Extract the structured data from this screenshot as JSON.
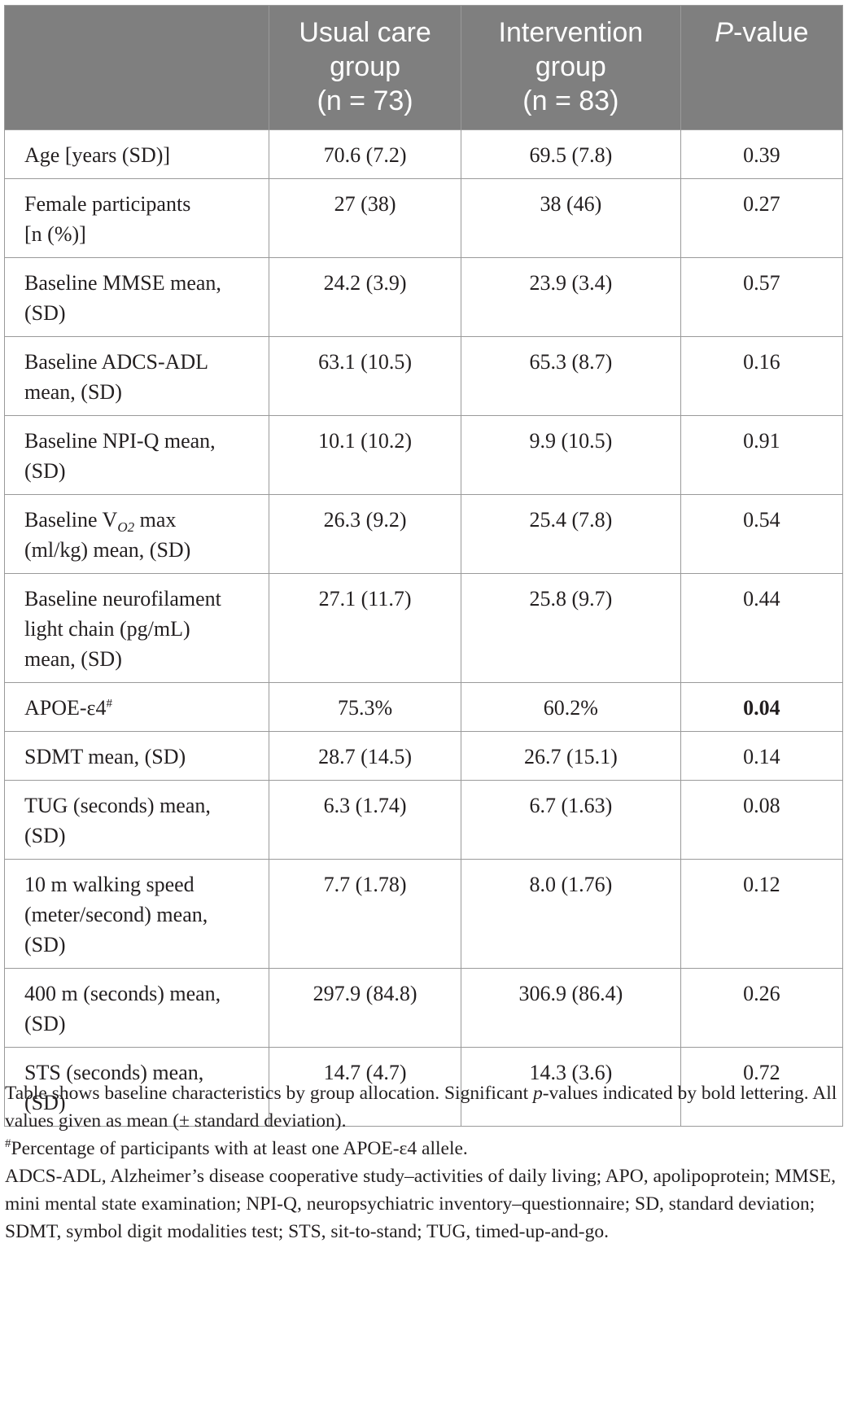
{
  "table": {
    "header": {
      "blank": "",
      "col1": [
        "Usual care",
        "group",
        "(n = 73)"
      ],
      "col2": [
        "Intervention",
        "group",
        "(n = 83)"
      ],
      "col3_italic": "P",
      "col3_rest": "-value"
    },
    "rows": [
      {
        "label": [
          "Age [years (SD)]"
        ],
        "usual": "70.6 (7.2)",
        "intervention": "69.5 (7.8)",
        "p": "0.39"
      },
      {
        "label": [
          "Female participants",
          "[n (%)]"
        ],
        "usual": "27 (38)",
        "intervention": "38 (46)",
        "p": "0.27"
      },
      {
        "label": [
          "Baseline MMSE mean,",
          "(SD)"
        ],
        "usual": "24.2 (3.9)",
        "intervention": "23.9 (3.4)",
        "p": "0.57"
      },
      {
        "label": [
          "Baseline ADCS-ADL",
          "mean, (SD)"
        ],
        "usual": "63.1 (10.5)",
        "intervention": "65.3 (8.7)",
        "p": "0.16"
      },
      {
        "label": [
          "Baseline NPI-Q mean,",
          "(SD)"
        ],
        "usual": "10.1 (10.2)",
        "intervention": "9.9 (10.5)",
        "p": "0.91"
      },
      {
        "label_pre": "Baseline V",
        "label_sub": "O2",
        "label_post": " max",
        "label_line2": "(ml/kg) mean, (SD)",
        "usual": "26.3 (9.2)",
        "intervention": "25.4 (7.8)",
        "p": "0.54"
      },
      {
        "label": [
          "Baseline neurofilament",
          "light chain (pg/mL)",
          "mean, (SD)"
        ],
        "usual": "27.1 (11.7)",
        "intervention": "25.8 (9.7)",
        "p": "0.44"
      },
      {
        "label_pre": "APOE-ε4",
        "label_sup": "#",
        "usual": "75.3%",
        "intervention": "60.2%",
        "p": "0.04"
      },
      {
        "label": [
          "SDMT mean, (SD)"
        ],
        "usual": "28.7 (14.5)",
        "intervention": "26.7 (15.1)",
        "p": "0.14"
      },
      {
        "label": [
          "TUG (seconds) mean,",
          "(SD)"
        ],
        "usual": "6.3 (1.74)",
        "intervention": "6.7 (1.63)",
        "p": "0.08"
      },
      {
        "label": [
          "10 m walking speed",
          "(meter/second) mean,",
          "(SD)"
        ],
        "usual": "7.7 (1.78)",
        "intervention": "8.0 (1.76)",
        "p": "0.12"
      },
      {
        "label": [
          "400 m (seconds) mean,",
          "(SD)"
        ],
        "usual": "297.9 (84.8)",
        "intervention": "306.9 (86.4)",
        "p": "0.26"
      },
      {
        "label": [
          "STS (seconds) mean,",
          "(SD)"
        ],
        "usual": "14.7 (4.7)",
        "intervention": "14.3 (3.6)",
        "p": "0.72"
      }
    ]
  },
  "notes": {
    "line1_a": "Table shows baseline characteristics by group allocation. Significant ",
    "line1_italic": "p",
    "line1_b": "-values indicated by bold lettering. All values given as mean (± standard deviation).",
    "line2_sup": "#",
    "line2_text": "Percentage of participants with at least one APOE-ε4 allele.",
    "line3": "ADCS-ADL, Alzheimer’s disease cooperative study–activities of daily living; APO, apolipoprotein; MMSE, mini mental state examination; NPI-Q, neuropsychiatric inventory–questionnaire; SD, standard deviation; SDMT, symbol digit modalities test; STS, sit-to-stand; TUG, timed-up-and-go."
  }
}
